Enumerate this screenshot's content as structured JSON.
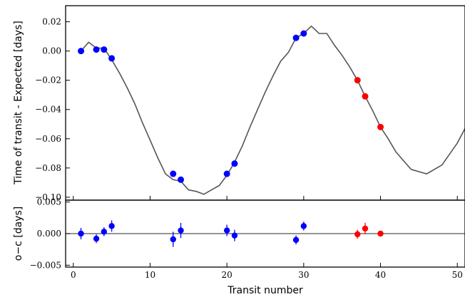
{
  "colors": {
    "blue": "#0000ff",
    "red": "#ff0000",
    "model_line": "#555555",
    "zero_line": "#555555",
    "axis": "#000000"
  },
  "chart_data": [
    {
      "type": "scatter",
      "panel": "top",
      "xlabel": "",
      "ylabel": "Time of transit - Expected [days]",
      "xlim": [
        -1,
        51
      ],
      "ylim": [
        -0.102,
        0.031
      ],
      "yticks": [
        "0.02",
        "0.00",
        "−0.02",
        "−0.04",
        "−0.06",
        "−0.08",
        "−0.10"
      ],
      "ytick_values": [
        0.02,
        0.0,
        -0.02,
        -0.04,
        -0.06,
        -0.08,
        -0.1
      ],
      "grid": false,
      "series": [
        {
          "color": "blue",
          "points": [
            {
              "x": 1,
              "y": 0.0
            },
            {
              "x": 3,
              "y": 0.001
            },
            {
              "x": 4,
              "y": 0.001
            },
            {
              "x": 5,
              "y": -0.005
            },
            {
              "x": 13,
              "y": -0.084
            },
            {
              "x": 14,
              "y": -0.088
            },
            {
              "x": 20,
              "y": -0.084
            },
            {
              "x": 21,
              "y": -0.077
            },
            {
              "x": 29,
              "y": 0.009
            },
            {
              "x": 30,
              "y": 0.012
            }
          ]
        },
        {
          "color": "red",
          "points": [
            {
              "x": 37,
              "y": -0.02
            },
            {
              "x": 38,
              "y": -0.031
            },
            {
              "x": 40,
              "y": -0.052
            }
          ]
        }
      ],
      "model_line": {
        "x": [
          1,
          2,
          3,
          4,
          5,
          6,
          7,
          8,
          9,
          10,
          11,
          12,
          13,
          14,
          15,
          16,
          17,
          18,
          19,
          20,
          21,
          22,
          23,
          24,
          25,
          26,
          27,
          28,
          29,
          30,
          31,
          32,
          33,
          34,
          35,
          36,
          37,
          38,
          39,
          40,
          41,
          42,
          43,
          44,
          46,
          48,
          50,
          51
        ],
        "y": [
          0.0,
          0.006,
          0.002,
          0.002,
          -0.006,
          -0.015,
          -0.025,
          -0.036,
          -0.049,
          -0.061,
          -0.073,
          -0.084,
          -0.088,
          -0.089,
          -0.095,
          -0.096,
          -0.098,
          -0.095,
          -0.092,
          -0.085,
          -0.076,
          -0.065,
          -0.052,
          -0.04,
          -0.028,
          -0.017,
          -0.007,
          -0.001,
          0.009,
          0.012,
          0.017,
          0.012,
          0.012,
          0.004,
          -0.003,
          -0.011,
          -0.02,
          -0.031,
          -0.041,
          -0.052,
          -0.06,
          -0.069,
          -0.075,
          -0.081,
          -0.084,
          -0.078,
          -0.063,
          -0.053
        ]
      }
    },
    {
      "type": "scatter",
      "panel": "bottom",
      "xlabel": "Transit number",
      "ylabel": "o−c [days]",
      "xlim": [
        -1,
        51
      ],
      "ylim": [
        -0.0053,
        0.0053
      ],
      "xticks": [
        "0",
        "10",
        "20",
        "30",
        "40",
        "50"
      ],
      "xtick_values": [
        0,
        10,
        20,
        30,
        40,
        50
      ],
      "yticks": [
        "0.005",
        "0.000",
        "−0.005"
      ],
      "ytick_values": [
        0.005,
        0.0,
        -0.005
      ],
      "grid": false,
      "zero_line": 0,
      "series": [
        {
          "color": "blue",
          "points": [
            {
              "x": 1,
              "y": 0.0,
              "err": 0.0009
            },
            {
              "x": 3,
              "y": -0.0008,
              "err": 0.0007
            },
            {
              "x": 4,
              "y": 0.0003,
              "err": 0.0007
            },
            {
              "x": 5,
              "y": 0.0012,
              "err": 0.0009
            },
            {
              "x": 13,
              "y": -0.0009,
              "err": 0.0012
            },
            {
              "x": 14,
              "y": 0.0005,
              "err": 0.0012
            },
            {
              "x": 20,
              "y": 0.0005,
              "err": 0.0009
            },
            {
              "x": 21,
              "y": -0.0003,
              "err": 0.0009
            },
            {
              "x": 29,
              "y": -0.001,
              "err": 0.0007
            },
            {
              "x": 30,
              "y": 0.0012,
              "err": 0.0007
            }
          ]
        },
        {
          "color": "red",
          "points": [
            {
              "x": 37,
              "y": -0.0001,
              "err": 0.0007
            },
            {
              "x": 38,
              "y": 0.0008,
              "err": 0.0009
            },
            {
              "x": 40,
              "y": 0.0,
              "err": 0.0003
            }
          ]
        }
      ]
    }
  ]
}
